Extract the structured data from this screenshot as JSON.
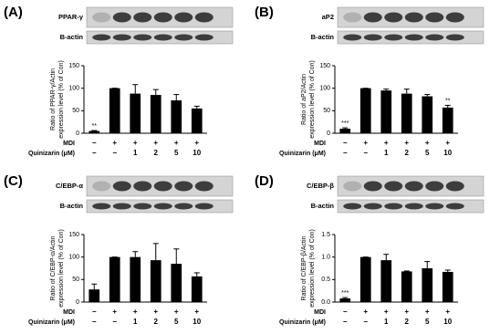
{
  "chart_data": [
    {
      "type": "bar",
      "panel_label": "(A)",
      "blot_labels": [
        "PPAR-γ",
        "B-actin"
      ],
      "y_label": [
        "Ratio of PPAR-γ/Actin",
        "expression level (% of Con)"
      ],
      "rows": [
        {
          "name": "MDI",
          "labels": [
            "−",
            "+",
            "+",
            "+",
            "+",
            "+"
          ]
        },
        {
          "name": "Quinizarin (μM)",
          "labels": [
            "−",
            "−",
            "1",
            "2",
            "5",
            "10"
          ]
        }
      ],
      "values": [
        5,
        100,
        88,
        85,
        73,
        55
      ],
      "errors": [
        1,
        0,
        20,
        12,
        13,
        5
      ],
      "annotations": [
        "**",
        null,
        null,
        null,
        null,
        null
      ],
      "ylim": [
        0,
        150
      ],
      "yticks": [
        0,
        50,
        100,
        150
      ],
      "color": "#000000"
    },
    {
      "type": "bar",
      "panel_label": "(B)",
      "blot_labels": [
        "aP2",
        "B-actin"
      ],
      "y_label": [
        "Ratio of aP2/Actin",
        "expression level (% of Con)"
      ],
      "rows": [
        {
          "name": "MDI",
          "labels": [
            "−",
            "+",
            "+",
            "+",
            "+",
            "+"
          ]
        },
        {
          "name": "Quinizarin (μM)",
          "labels": [
            "−",
            "−",
            "1",
            "2",
            "5",
            "10"
          ]
        }
      ],
      "values": [
        10,
        100,
        95,
        88,
        82,
        57
      ],
      "errors": [
        2,
        0,
        3,
        10,
        4,
        5
      ],
      "annotations": [
        "***",
        null,
        null,
        null,
        null,
        "**"
      ],
      "ylim": [
        0,
        150
      ],
      "yticks": [
        0,
        50,
        100,
        150
      ],
      "color": "#000000"
    },
    {
      "type": "bar",
      "panel_label": "(C)",
      "blot_labels": [
        "C/EBP-α",
        "B-actin"
      ],
      "y_label": [
        "Ratio of C/EBP-α/Actin",
        "expression level (% of Con)"
      ],
      "rows": [
        {
          "name": "MDI",
          "labels": [
            "−",
            "+",
            "+",
            "+",
            "+",
            "+"
          ]
        },
        {
          "name": "Quinizarin (μM)",
          "labels": [
            "−",
            "−",
            "1",
            "2",
            "5",
            "10"
          ]
        }
      ],
      "values": [
        28,
        100,
        100,
        93,
        85,
        57
      ],
      "errors": [
        12,
        0,
        12,
        37,
        33,
        8
      ],
      "annotations": [
        null,
        null,
        null,
        null,
        null,
        null
      ],
      "ylim": [
        0,
        150
      ],
      "yticks": [
        0,
        50,
        100,
        150
      ],
      "color": "#000000"
    },
    {
      "type": "bar",
      "panel_label": "(D)",
      "blot_labels": [
        "C/EBP-β",
        "B-actin"
      ],
      "y_label": [
        "Ratio of C/EBP-β/Actin",
        "expression level (% of Con)"
      ],
      "rows": [
        {
          "name": "MDI",
          "labels": [
            "−",
            "+",
            "+",
            "+",
            "+",
            "+"
          ]
        },
        {
          "name": "Quinizarin (μM)",
          "labels": [
            "−",
            "−",
            "1",
            "2",
            "5",
            "10"
          ]
        }
      ],
      "values": [
        0.08,
        1.0,
        0.93,
        0.68,
        0.75,
        0.67
      ],
      "errors": [
        0.02,
        0,
        0.13,
        0.01,
        0.15,
        0.04
      ],
      "annotations": [
        "***",
        null,
        null,
        null,
        null,
        null
      ],
      "ylim": [
        0,
        1.5
      ],
      "yticks": [
        {
          "value": 0,
          "label": "0.0"
        },
        {
          "value": 0.5,
          "label": "0.5"
        },
        {
          "value": 1,
          "label": "1.0"
        },
        {
          "value": 1.5,
          "label": "1.5"
        }
      ],
      "color": "#000000"
    }
  ]
}
